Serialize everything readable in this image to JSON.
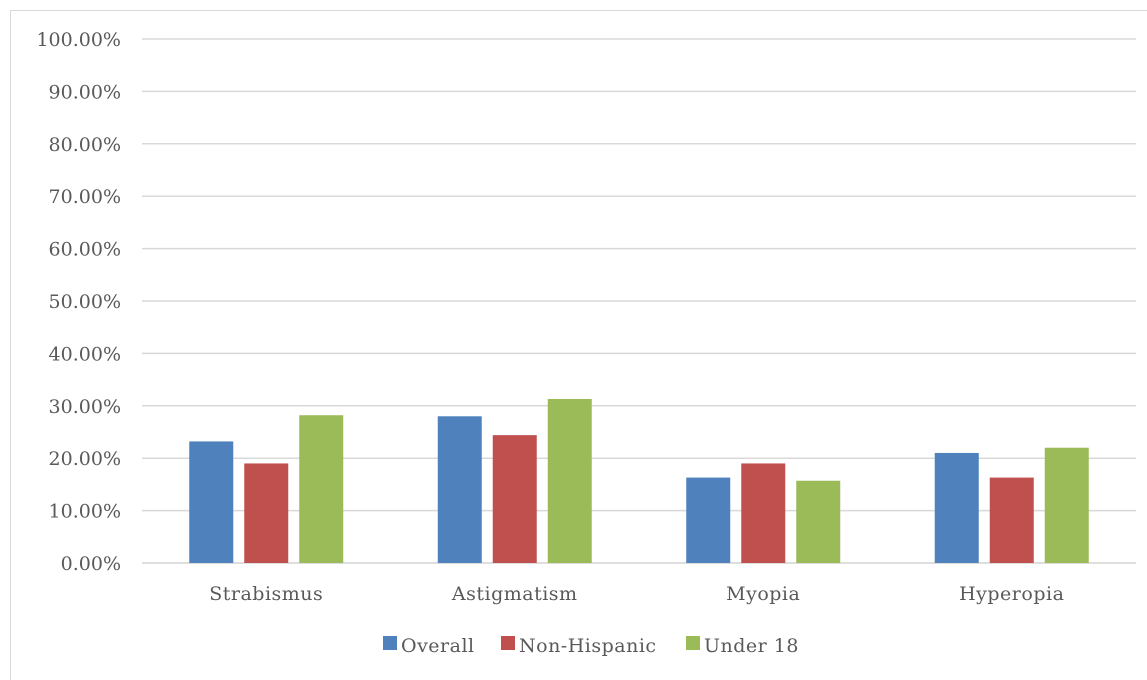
{
  "chart_data": {
    "type": "bar",
    "categories": [
      "Strabismus",
      "Astigmatism",
      "Myopia",
      "Hyperopia"
    ],
    "series": [
      {
        "name": "Overall",
        "color": "#4f81bd",
        "values": [
          23.2,
          28.0,
          16.3,
          21.0
        ]
      },
      {
        "name": "Non-Hispanic",
        "color": "#c0504d",
        "values": [
          19.0,
          24.4,
          19.0,
          16.3
        ]
      },
      {
        "name": "Under 18",
        "color": "#9bbb59",
        "values": [
          28.2,
          31.3,
          15.7,
          22.0
        ]
      }
    ],
    "ylim": [
      0,
      100
    ],
    "yticks": [
      "0.00%",
      "10.00%",
      "20.00%",
      "30.00%",
      "40.00%",
      "50.00%",
      "60.00%",
      "70.00%",
      "80.00%",
      "90.00%",
      "100.00%"
    ],
    "title": "",
    "xlabel": "",
    "ylabel": "",
    "grid": true,
    "legend_position": "bottom",
    "gridline_color": "#d9d9d9"
  }
}
